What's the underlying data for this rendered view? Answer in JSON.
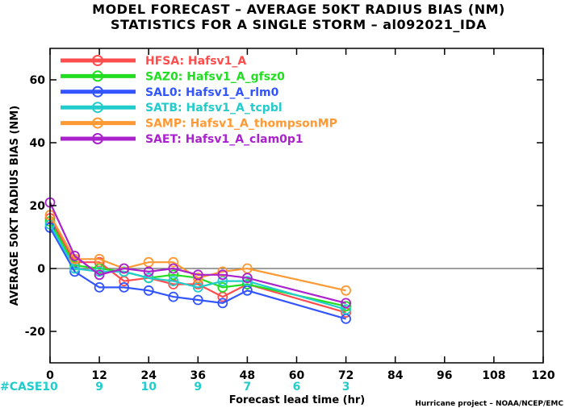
{
  "chart_data": {
    "type": "line",
    "title": "MODEL FORECAST – AVERAGE 50KT RADIUS BIAS (NM)",
    "subtitle": "STATISTICS FOR A SINGLE STORM – al092021_IDA",
    "xlabel": "Forecast lead time (hr)",
    "ylabel": "AVERAGE 50KT RADIUS BIAS (NM)",
    "xlim": [
      0,
      120
    ],
    "ylim": [
      -30,
      70
    ],
    "xticks": [
      0,
      12,
      24,
      36,
      48,
      60,
      72,
      84,
      96,
      108,
      120
    ],
    "yticks": [
      -20,
      0,
      20,
      40,
      60
    ],
    "grid": false,
    "legend_position": "top-left",
    "x": [
      0,
      6,
      12,
      18,
      24,
      30,
      36,
      42,
      48,
      72
    ],
    "series": [
      {
        "name": "HFSA:",
        "desc": "Hafsv1_A",
        "color": "#ff4d4d",
        "values": [
          16,
          2,
          2,
          -4,
          -3,
          -5,
          -5,
          -9,
          -5,
          -14
        ]
      },
      {
        "name": "SAZ0:",
        "desc": "Hafsv1_A_gfsz0",
        "color": "#22dd22",
        "values": [
          15,
          1,
          0,
          -1,
          -3,
          -2,
          -3,
          -6,
          -5,
          -12
        ]
      },
      {
        "name": "SAL0:",
        "desc": "Hafsv1_A_rlm0",
        "color": "#3355ff",
        "values": [
          13,
          -1,
          -6,
          -6,
          -7,
          -9,
          -10,
          -11,
          -7,
          -16
        ]
      },
      {
        "name": "SATB:",
        "desc": "Hafsv1_A_tcpbl",
        "color": "#22cccc",
        "values": [
          14,
          0,
          -1,
          -1,
          -3,
          -4,
          -6,
          -4,
          -4,
          -13
        ]
      },
      {
        "name": "SAMP:",
        "desc": "Hafsv1_A_thompsonMP",
        "color": "#ff9933",
        "values": [
          17,
          3,
          3,
          0,
          2,
          2,
          -3,
          -1,
          0,
          -7
        ]
      },
      {
        "name": "SAET:",
        "desc": "Hafsv1_A_clam0p1",
        "color": "#aa22cc",
        "values": [
          21,
          4,
          -2,
          0,
          -1,
          0,
          -2,
          -2,
          -3,
          -11
        ]
      }
    ],
    "cases": {
      "label": "#CASE",
      "color": "#22cccc",
      "x": [
        0,
        12,
        24,
        36,
        48,
        60,
        72
      ],
      "values": [
        "10",
        "9",
        "10",
        "9",
        "7",
        "6",
        "3"
      ]
    },
    "zero_line": true
  },
  "credit": "Hurricane project – NOAA/NCEP/EMC"
}
